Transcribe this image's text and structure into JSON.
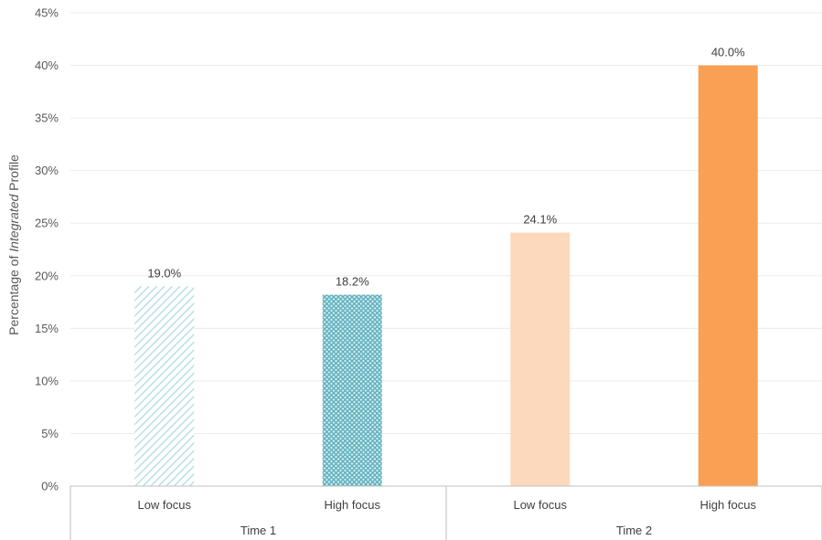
{
  "chart_data": {
    "type": "bar",
    "ylabel_prefix": "Percentage of ",
    "ylabel_italic": "Integrated",
    "ylabel_suffix": " Profile",
    "xlabel": "",
    "ylim": [
      0,
      45
    ],
    "ytick_step": 5,
    "ytick_suffix": "%",
    "grid": true,
    "legend": "none",
    "groups": [
      "Time 1",
      "Time 2"
    ],
    "categories": [
      "Low focus",
      "High focus",
      "Low focus",
      "High focus"
    ],
    "values": [
      19.0,
      18.2,
      24.1,
      40.0
    ],
    "data_labels": [
      "19.0%",
      "18.2%",
      "24.1%",
      "40.0%"
    ],
    "colors": [
      "#b9e0e6",
      "#5fb0bd",
      "#fcd9bd",
      "#f9a055"
    ],
    "patterns": [
      "hatch-light",
      "hatch-cross",
      "solid",
      "solid"
    ]
  }
}
